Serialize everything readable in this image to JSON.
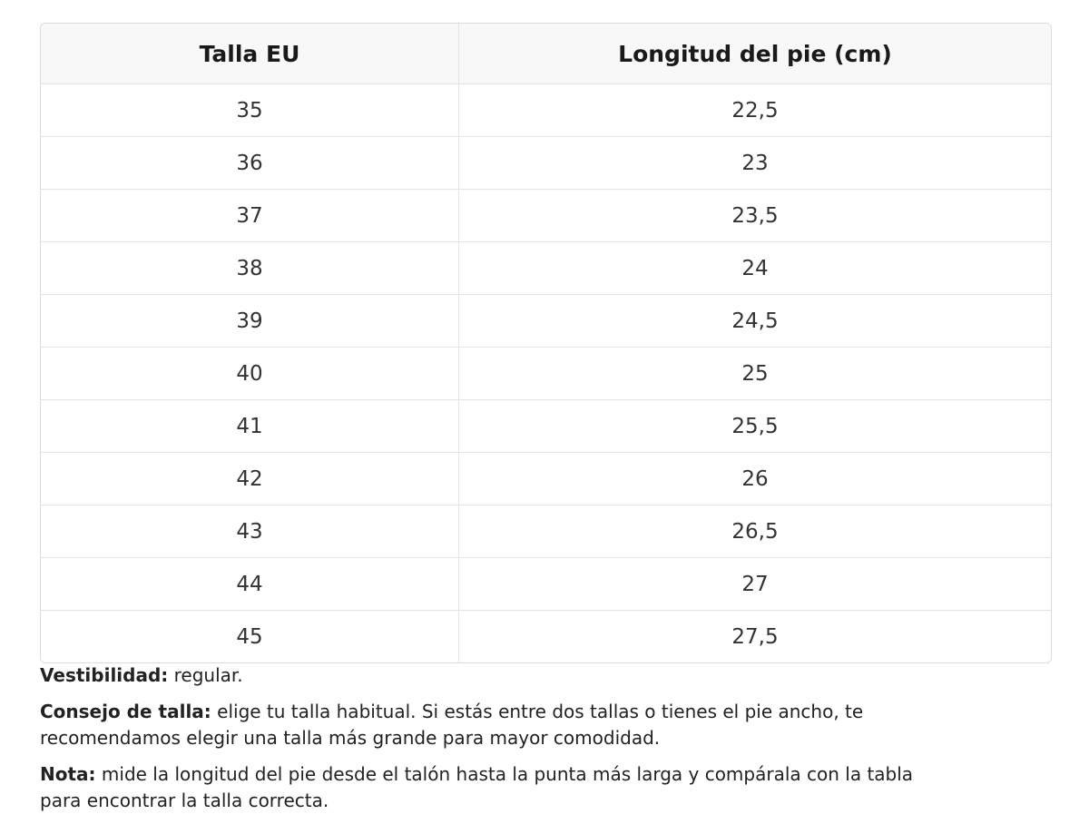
{
  "table": {
    "header": [
      "Talla EU",
      "Longitud del pie (cm)"
    ],
    "rows": [
      [
        "35",
        "22,5"
      ],
      [
        "36",
        "23"
      ],
      [
        "37",
        "23,5"
      ],
      [
        "38",
        "24"
      ],
      [
        "39",
        "24,5"
      ],
      [
        "40",
        "25"
      ],
      [
        "41",
        "25,5"
      ],
      [
        "42",
        "26"
      ],
      [
        "43",
        "26,5"
      ],
      [
        "44",
        "27"
      ],
      [
        "45",
        "27,5"
      ]
    ]
  },
  "notes": [
    {
      "label": "Vestibilidad:",
      "text": "regular."
    },
    {
      "label": "Consejo de talla:",
      "text": "elige tu talla habitual. Si estás entre dos tallas o tienes el pie ancho, te recomendamos elegir una talla más grande para mayor comodidad."
    },
    {
      "label": "Nota:",
      "text": "mide la longitud del pie desde el talón hasta la punta más larga y compárala con la tabla para encontrar la talla correcta."
    }
  ]
}
